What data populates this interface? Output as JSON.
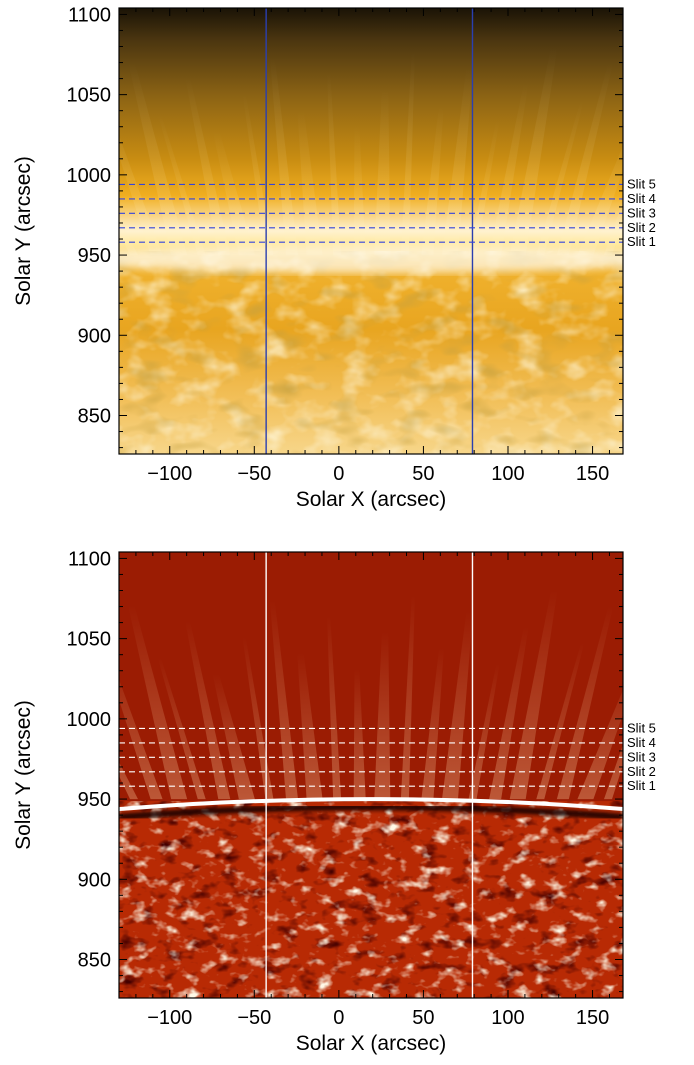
{
  "chart_data": [
    {
      "type": "image",
      "xlabel": "Solar X (arcsec)",
      "ylabel": "Solar Y (arcsec)",
      "xlim": [
        -130,
        168
      ],
      "ylim": [
        826,
        1104
      ],
      "xticks": [
        -100,
        -50,
        0,
        50,
        100,
        150
      ],
      "xtick_labels": [
        "−100",
        "−50",
        "0",
        "50",
        "100",
        "150"
      ],
      "yticks": [
        850,
        900,
        950,
        1000,
        1050,
        1100
      ],
      "ytick_labels": [
        "850",
        "900",
        "950",
        "1000",
        "1050",
        "1100"
      ],
      "colormap": "gold",
      "colors": {
        "slit_line": "#3344dd",
        "vertical_line": "#2a3fb0"
      },
      "vertical_lines_x": [
        -43,
        79
      ],
      "slits": [
        {
          "label": "Slit 1",
          "y": 958
        },
        {
          "label": "Slit 2",
          "y": 967
        },
        {
          "label": "Slit 3",
          "y": 976
        },
        {
          "label": "Slit 4",
          "y": 985
        },
        {
          "label": "Slit 5",
          "y": 994
        }
      ],
      "limb_y": 950
    },
    {
      "type": "image",
      "xlabel": "Solar X (arcsec)",
      "ylabel": "Solar Y (arcsec)",
      "xlim": [
        -130,
        168
      ],
      "ylim": [
        826,
        1104
      ],
      "xticks": [
        -100,
        -50,
        0,
        50,
        100,
        150
      ],
      "xtick_labels": [
        "−100",
        "−50",
        "0",
        "50",
        "100",
        "150"
      ],
      "yticks": [
        850,
        900,
        950,
        1000,
        1050,
        1100
      ],
      "ytick_labels": [
        "850",
        "900",
        "950",
        "1000",
        "1050",
        "1100"
      ],
      "colormap": "red-enhanced",
      "colors": {
        "slit_line": "#ffffff",
        "vertical_line": "#ffffff"
      },
      "vertical_lines_x": [
        -43,
        79
      ],
      "slits": [
        {
          "label": "Slit 1",
          "y": 958
        },
        {
          "label": "Slit 2",
          "y": 967
        },
        {
          "label": "Slit 3",
          "y": 976
        },
        {
          "label": "Slit 4",
          "y": 985
        },
        {
          "label": "Slit 5",
          "y": 994
        }
      ],
      "limb_y": 950
    }
  ]
}
